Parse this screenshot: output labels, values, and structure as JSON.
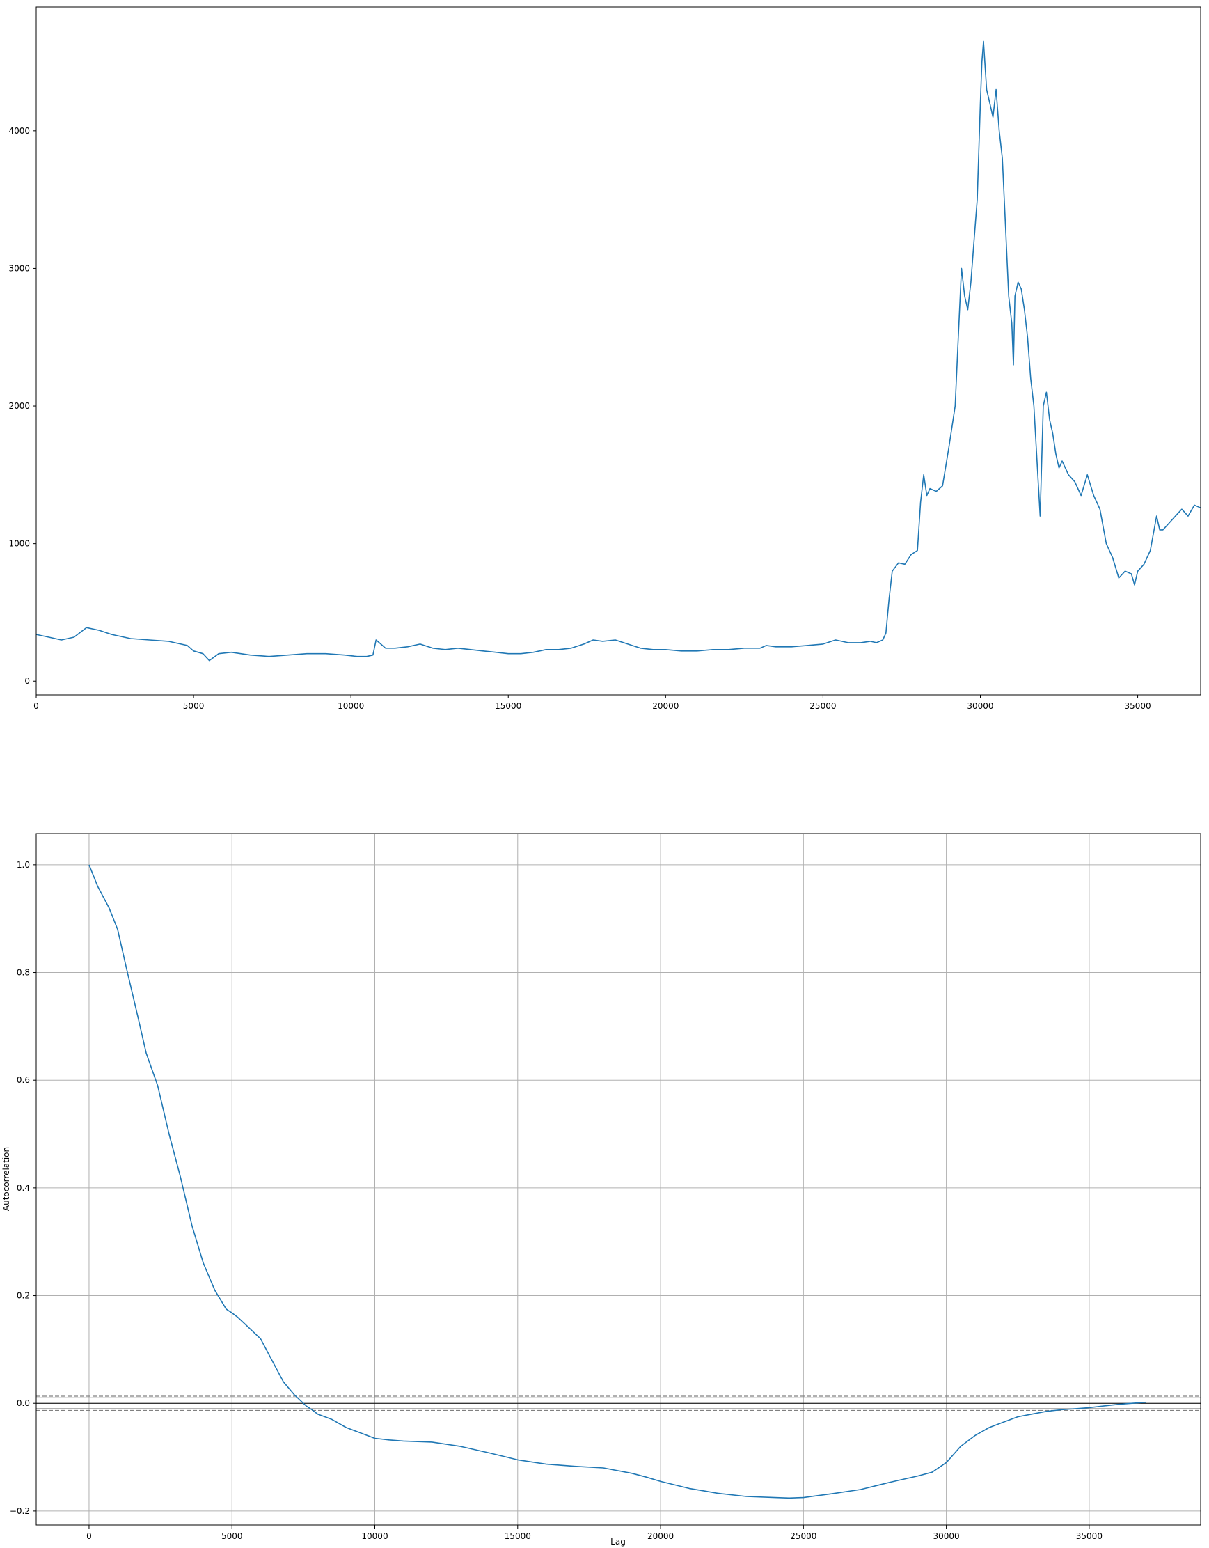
{
  "chart_data": [
    {
      "type": "line",
      "title": "",
      "xlabel": "",
      "ylabel": "",
      "xlim": [
        0,
        37000
      ],
      "ylim": [
        -100,
        4900
      ],
      "grid": false,
      "x_ticks": [
        0,
        5000,
        10000,
        15000,
        20000,
        25000,
        30000,
        35000
      ],
      "y_ticks": [
        0,
        1000,
        2000,
        3000,
        4000
      ],
      "x_tick_labels": [
        "0",
        "5000",
        "10000",
        "15000",
        "20000",
        "25000",
        "30000",
        "35000"
      ],
      "y_tick_labels": [
        "0",
        "1000",
        "2000",
        "3000",
        "4000"
      ],
      "line_color": "#1f77b4",
      "series": [
        {
          "x": [
            0,
            400,
            800,
            1200,
            1600,
            2000,
            2400,
            3000,
            3600,
            4200,
            4800,
            5000,
            5300,
            5500,
            5800,
            6200,
            6800,
            7400,
            8000,
            8600,
            9200,
            9800,
            10200,
            10500,
            10700,
            10800,
            10900,
            11100,
            11400,
            11800,
            12200,
            12600,
            13000,
            13400,
            13800,
            14200,
            14600,
            15000,
            15400,
            15800,
            16200,
            16600,
            17000,
            17400,
            17700,
            18000,
            18400,
            18800,
            19200,
            19600,
            20000,
            20500,
            21000,
            21500,
            22000,
            22500,
            23000,
            23200,
            23500,
            24000,
            24500,
            25000,
            25400,
            25800,
            26200,
            26500,
            26700,
            26900,
            27000,
            27100,
            27200,
            27400,
            27600,
            27800,
            28000,
            28100,
            28200,
            28300,
            28400,
            28600,
            28800,
            29000,
            29200,
            29300,
            29400,
            29500,
            29600,
            29700,
            29800,
            29900,
            30000,
            30050,
            30100,
            30200,
            30300,
            30400,
            30500,
            30600,
            30700,
            30800,
            30900,
            31000,
            31050,
            31100,
            31200,
            31300,
            31400,
            31500,
            31600,
            31700,
            31800,
            31900,
            32000,
            32100,
            32200,
            32300,
            32400,
            32500,
            32600,
            32800,
            33000,
            33200,
            33400,
            33600,
            33800,
            34000,
            34200,
            34400,
            34600,
            34800,
            34900,
            35000,
            35200,
            35400,
            35600,
            35700,
            35800,
            36000,
            36200,
            36400,
            36600,
            36800,
            37000
          ],
          "values": [
            340,
            320,
            300,
            320,
            390,
            370,
            340,
            310,
            300,
            290,
            260,
            220,
            200,
            150,
            200,
            210,
            190,
            180,
            190,
            200,
            200,
            190,
            180,
            180,
            190,
            300,
            280,
            240,
            240,
            250,
            270,
            240,
            230,
            240,
            230,
            220,
            210,
            200,
            200,
            210,
            230,
            230,
            240,
            270,
            300,
            290,
            300,
            270,
            240,
            230,
            230,
            220,
            220,
            230,
            230,
            240,
            240,
            260,
            250,
            250,
            260,
            270,
            300,
            280,
            280,
            290,
            280,
            300,
            350,
            600,
            800,
            860,
            850,
            920,
            950,
            1300,
            1500,
            1350,
            1400,
            1380,
            1420,
            1700,
            2000,
            2500,
            3000,
            2800,
            2700,
            2900,
            3200,
            3500,
            4200,
            4500,
            4650,
            4300,
            4200,
            4100,
            4300,
            4000,
            3800,
            3300,
            2800,
            2600,
            2300,
            2800,
            2900,
            2850,
            2700,
            2500,
            2200,
            2000,
            1600,
            1200,
            2000,
            2100,
            1900,
            1800,
            1650,
            1550,
            1600,
            1500,
            1450,
            1350,
            1500,
            1350,
            1250,
            1000,
            900,
            750,
            800,
            780,
            700,
            800,
            850,
            950,
            1200,
            1100,
            1100,
            1150,
            1200,
            1250,
            1200,
            1280,
            1260
          ]
        }
      ]
    },
    {
      "type": "line",
      "title": "",
      "xlabel": "Lag",
      "ylabel": "Autocorrelation",
      "xlim": [
        -1850,
        38900
      ],
      "ylim": [
        -0.226,
        1.058
      ],
      "grid": true,
      "x_ticks": [
        0,
        5000,
        10000,
        15000,
        20000,
        25000,
        30000,
        35000
      ],
      "y_ticks": [
        -0.2,
        0.0,
        0.2,
        0.4,
        0.6,
        0.8,
        1.0
      ],
      "x_tick_labels": [
        "0",
        "5000",
        "10000",
        "15000",
        "20000",
        "25000",
        "30000",
        "35000"
      ],
      "y_tick_labels": [
        "−0.2",
        "0.0",
        "0.2",
        "0.4",
        "0.6",
        "0.8",
        "1.0"
      ],
      "line_color": "#1f77b4",
      "confidence_band": [
        0.0132,
        0.0101,
        -0.0101,
        -0.0132
      ],
      "series": [
        {
          "x": [
            0,
            300,
            700,
            1000,
            1300,
            1700,
            2000,
            2400,
            2800,
            3200,
            3600,
            4000,
            4400,
            4800,
            5000,
            5200,
            5600,
            6000,
            6400,
            6800,
            7200,
            7600,
            7800,
            8000,
            8500,
            9000,
            9500,
            10000,
            10500,
            11000,
            12000,
            13000,
            14000,
            15000,
            16000,
            17000,
            18000,
            19000,
            19500,
            20000,
            21000,
            22000,
            23000,
            24000,
            24500,
            25000,
            26000,
            27000,
            28000,
            29000,
            29500,
            30000,
            30500,
            31000,
            31500,
            32000,
            32500,
            33000,
            33500,
            34000,
            34500,
            35000,
            35500,
            36000,
            36500,
            37000
          ],
          "values": [
            1.0,
            0.96,
            0.92,
            0.88,
            0.81,
            0.72,
            0.65,
            0.59,
            0.5,
            0.42,
            0.33,
            0.26,
            0.21,
            0.175,
            0.168,
            0.16,
            0.14,
            0.12,
            0.08,
            0.04,
            0.015,
            -0.005,
            -0.012,
            -0.02,
            -0.03,
            -0.045,
            -0.055,
            -0.065,
            -0.068,
            -0.07,
            -0.072,
            -0.08,
            -0.092,
            -0.105,
            -0.113,
            -0.117,
            -0.12,
            -0.13,
            -0.137,
            -0.145,
            -0.158,
            -0.167,
            -0.173,
            -0.175,
            -0.176,
            -0.175,
            -0.168,
            -0.16,
            -0.147,
            -0.135,
            -0.128,
            -0.11,
            -0.08,
            -0.06,
            -0.045,
            -0.035,
            -0.025,
            -0.02,
            -0.015,
            -0.012,
            -0.01,
            -0.008,
            -0.005,
            -0.002,
            0.0,
            0.002
          ]
        }
      ]
    }
  ]
}
